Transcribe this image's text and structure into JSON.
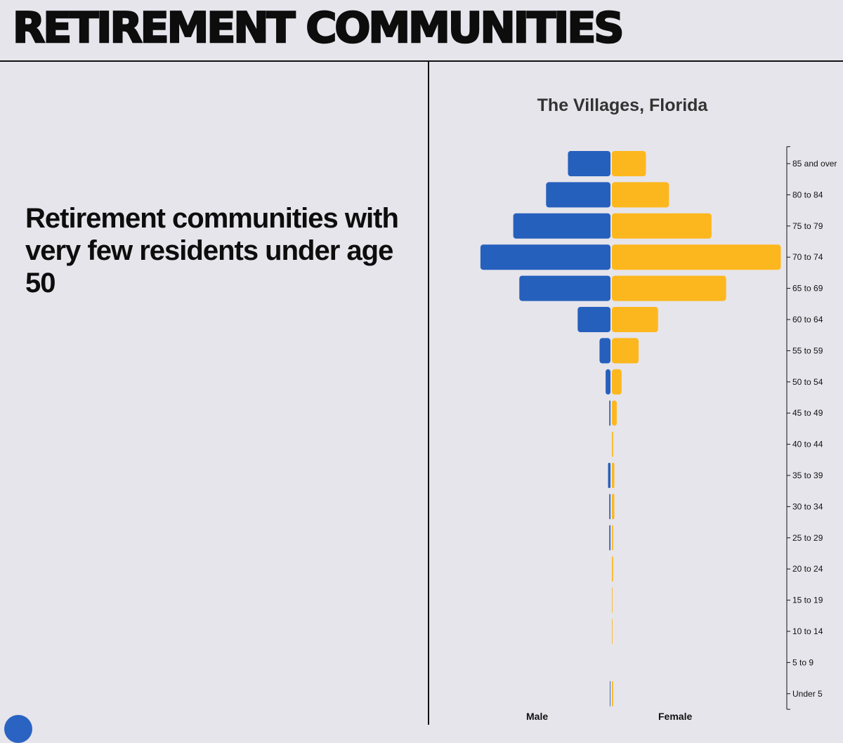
{
  "header": {
    "title": "RETIREMENT COMMUNITIES"
  },
  "left": {
    "headline": "Retirement communities with very few residents under age 50"
  },
  "colors": {
    "male": "#2660bd",
    "female": "#fdb71e",
    "background": "#e6e5eb"
  },
  "chart_data": {
    "type": "bar",
    "orientation": "horizontal-population-pyramid",
    "title": "The Villages, Florida",
    "xlabel_left": "Male",
    "xlabel_right": "Female",
    "unit": "share of population (%)",
    "xlim": [
      -14,
      14
    ],
    "categories": [
      "85 and over",
      "80 to 84",
      "75 to 79",
      "70 to 74",
      "65 to 69",
      "60 to 64",
      "55 to 59",
      "50 to 54",
      "45 to 49",
      "40 to 44",
      "35 to 39",
      "30 to 34",
      "25 to 29",
      "20 to 24",
      "15 to 19",
      "10 to 14",
      "5 to 9",
      "Under 5"
    ],
    "series": [
      {
        "name": "Male",
        "values": [
          3.5,
          5.3,
          8.0,
          10.7,
          7.5,
          2.7,
          0.9,
          0.4,
          0.1,
          0.0,
          0.2,
          0.1,
          0.1,
          0.0,
          0.0,
          0.0,
          0.0,
          0.05
        ]
      },
      {
        "name": "Female",
        "values": [
          2.8,
          4.7,
          8.2,
          13.9,
          9.4,
          3.8,
          2.2,
          0.8,
          0.4,
          0.1,
          0.2,
          0.2,
          0.1,
          0.1,
          0.05,
          0.05,
          0.0,
          0.1
        ]
      }
    ]
  }
}
